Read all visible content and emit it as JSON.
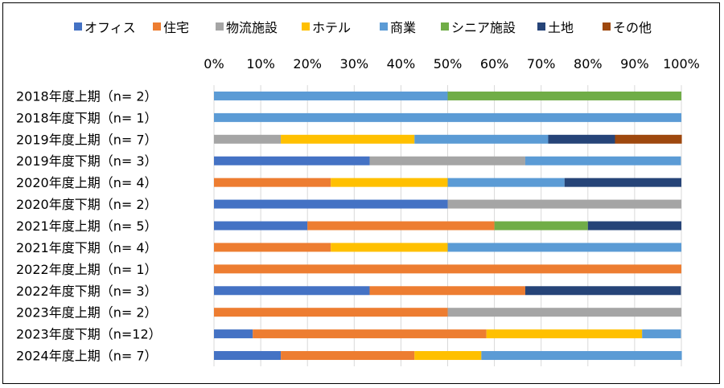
{
  "chart_data": {
    "type": "bar",
    "orientation": "horizontal",
    "stacked": "100%",
    "title": "",
    "xlabel": "",
    "ylabel": "",
    "xlim": [
      0,
      100
    ],
    "x_tick_labels": [
      "0%",
      "10%",
      "20%",
      "30%",
      "40%",
      "50%",
      "60%",
      "70%",
      "80%",
      "90%",
      "100%"
    ],
    "grid": true,
    "legend_position": "top",
    "categories": [
      "2018年度上期（n= 2）",
      "2018年度下期（n= 1）",
      "2019年度上期（n= 7）",
      "2019年度下期（n= 3）",
      "2020年度上期（n= 4）",
      "2020年度下期（n= 2）",
      "2021年度上期（n= 5）",
      "2021年度下期（n= 4）",
      "2022年度上期（n= 1）",
      "2022年度下期（n= 3）",
      "2023年度上期（n= 2）",
      "2023年度下期（n=12）",
      "2024年度上期（n= 7）"
    ],
    "series": [
      {
        "name": "オフィス",
        "color": "#4472C4",
        "values": [
          0,
          0,
          0,
          33.3,
          0,
          50,
          20,
          0,
          0,
          33.3,
          0,
          8.3,
          14.3
        ]
      },
      {
        "name": "住宅",
        "color": "#ED7D31",
        "values": [
          0,
          0,
          0,
          0,
          25,
          0,
          40,
          25,
          100,
          33.3,
          50,
          50,
          28.6
        ]
      },
      {
        "name": "物流施設",
        "color": "#A5A5A5",
        "values": [
          0,
          0,
          14.3,
          33.3,
          0,
          50,
          0,
          0,
          0,
          0,
          50,
          0,
          0
        ]
      },
      {
        "name": "ホテル",
        "color": "#FFC000",
        "values": [
          0,
          0,
          28.6,
          0,
          25,
          0,
          0,
          25,
          0,
          0,
          0,
          33.3,
          14.3
        ]
      },
      {
        "name": "商業",
        "color": "#5B9BD5",
        "values": [
          50,
          100,
          28.6,
          33.3,
          25,
          0,
          0,
          50,
          0,
          0,
          0,
          8.3,
          42.9
        ]
      },
      {
        "name": "シニア施設",
        "color": "#70AD47",
        "values": [
          50,
          0,
          0,
          0,
          0,
          0,
          20,
          0,
          0,
          0,
          0,
          0,
          0
        ]
      },
      {
        "name": "土地",
        "color": "#264478",
        "values": [
          0,
          0,
          14.3,
          0,
          25,
          0,
          20,
          0,
          0,
          33.3,
          0,
          0,
          0
        ]
      },
      {
        "name": "その他",
        "color": "#9E480E",
        "values": [
          0,
          0,
          14.3,
          0,
          0,
          0,
          0,
          0,
          0,
          0,
          0,
          0,
          0
        ]
      }
    ]
  }
}
